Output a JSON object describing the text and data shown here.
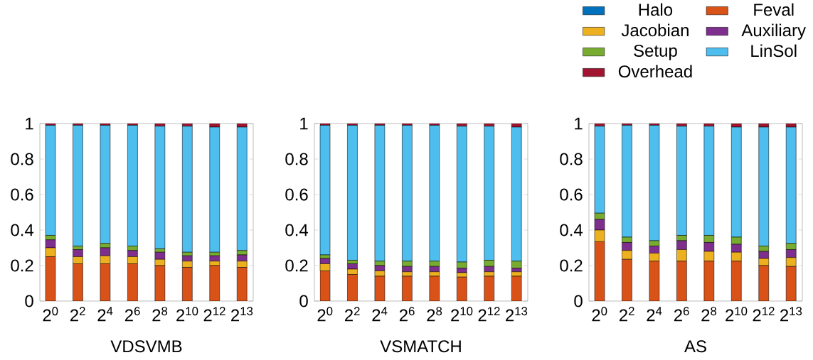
{
  "chart_data": [
    {
      "type": "bar",
      "stacked": true,
      "xlabel": "VDSVMB",
      "categories": [
        "2$^{0}$",
        "2$^{2}$",
        "2$^{4}$",
        "2$^{6}$",
        "2$^{8}$",
        "2$^{10}$",
        "2$^{12}$",
        "2$^{13}$"
      ],
      "ylim": [
        0,
        1
      ],
      "yticks": [
        0,
        0.2,
        0.4,
        0.6,
        0.8,
        1
      ],
      "series": [
        {
          "color": "#0072bd",
          "values": [
            0,
            0,
            0,
            0,
            0,
            0,
            0,
            0
          ]
        },
        {
          "color": "#d95319",
          "values": [
            0.25,
            0.21,
            0.21,
            0.21,
            0.2,
            0.19,
            0.2,
            0.19
          ]
        },
        {
          "color": "#edb120",
          "values": [
            0.05,
            0.04,
            0.045,
            0.04,
            0.035,
            0.035,
            0.025,
            0.035
          ]
        },
        {
          "color": "#7e2f8e",
          "values": [
            0.045,
            0.04,
            0.045,
            0.035,
            0.04,
            0.03,
            0.03,
            0.035
          ]
        },
        {
          "color": "#77ac30",
          "values": [
            0.025,
            0.02,
            0.025,
            0.025,
            0.02,
            0.02,
            0.02,
            0.025
          ]
        },
        {
          "color": "#4dbeee",
          "values": [
            0.62,
            0.68,
            0.665,
            0.68,
            0.69,
            0.71,
            0.705,
            0.695
          ]
        },
        {
          "color": "#a2142f",
          "values": [
            0.01,
            0.01,
            0.01,
            0.01,
            0.015,
            0.015,
            0.02,
            0.02
          ]
        }
      ]
    },
    {
      "type": "bar",
      "stacked": true,
      "xlabel": "VSMATCH",
      "categories": [
        "2$^{0}$",
        "2$^{2}$",
        "2$^{4}$",
        "2$^{6}$",
        "2$^{8}$",
        "2$^{10}$",
        "2$^{12}$",
        "2$^{13}$"
      ],
      "ylim": [
        0,
        1
      ],
      "yticks": [
        0,
        0.2,
        0.4,
        0.6,
        0.8,
        1
      ],
      "series": [
        {
          "color": "#0072bd",
          "values": [
            0,
            0,
            0,
            0,
            0,
            0,
            0,
            0
          ]
        },
        {
          "color": "#d95319",
          "values": [
            0.17,
            0.15,
            0.14,
            0.14,
            0.14,
            0.135,
            0.14,
            0.14
          ]
        },
        {
          "color": "#edb120",
          "values": [
            0.04,
            0.03,
            0.03,
            0.025,
            0.025,
            0.025,
            0.025,
            0.025
          ]
        },
        {
          "color": "#7e2f8e",
          "values": [
            0.03,
            0.03,
            0.03,
            0.03,
            0.03,
            0.025,
            0.03,
            0.02
          ]
        },
        {
          "color": "#77ac30",
          "values": [
            0.02,
            0.02,
            0.025,
            0.03,
            0.03,
            0.035,
            0.035,
            0.04
          ]
        },
        {
          "color": "#4dbeee",
          "values": [
            0.73,
            0.76,
            0.765,
            0.765,
            0.765,
            0.765,
            0.755,
            0.755
          ]
        },
        {
          "color": "#a2142f",
          "values": [
            0.01,
            0.01,
            0.01,
            0.01,
            0.01,
            0.015,
            0.015,
            0.02
          ]
        }
      ]
    },
    {
      "type": "bar",
      "stacked": true,
      "xlabel": "AS",
      "legend": "top right",
      "categories": [
        "2$^{0}$",
        "2$^{2}$",
        "2$^{4}$",
        "2$^{6}$",
        "2$^{8}$",
        "2$^{10}$",
        "2$^{12}$",
        "2$^{13}$"
      ],
      "ylim": [
        0,
        1
      ],
      "yticks": [
        0,
        0.2,
        0.4,
        0.6,
        0.8,
        1
      ],
      "series": [
        {
          "name": "Halo",
          "color": "#0072bd",
          "values": [
            0,
            0,
            0,
            0,
            0,
            0,
            0,
            0
          ]
        },
        {
          "name": "Feval",
          "color": "#d95319",
          "values": [
            0.335,
            0.235,
            0.225,
            0.225,
            0.225,
            0.225,
            0.2,
            0.195
          ]
        },
        {
          "name": "Jacobian",
          "color": "#edb120",
          "values": [
            0.065,
            0.05,
            0.045,
            0.065,
            0.055,
            0.05,
            0.04,
            0.05
          ]
        },
        {
          "name": "Auxiliary",
          "color": "#7e2f8e",
          "values": [
            0.06,
            0.045,
            0.04,
            0.05,
            0.05,
            0.045,
            0.04,
            0.045
          ]
        },
        {
          "name": "Setup",
          "color": "#77ac30",
          "values": [
            0.035,
            0.03,
            0.03,
            0.03,
            0.04,
            0.04,
            0.03,
            0.035
          ]
        },
        {
          "name": "LinSol",
          "color": "#4dbeee",
          "values": [
            0.49,
            0.63,
            0.65,
            0.615,
            0.615,
            0.62,
            0.67,
            0.655
          ]
        },
        {
          "name": "Overhead",
          "color": "#a2142f",
          "values": [
            0.015,
            0.01,
            0.01,
            0.015,
            0.015,
            0.02,
            0.02,
            0.02
          ]
        }
      ]
    }
  ]
}
